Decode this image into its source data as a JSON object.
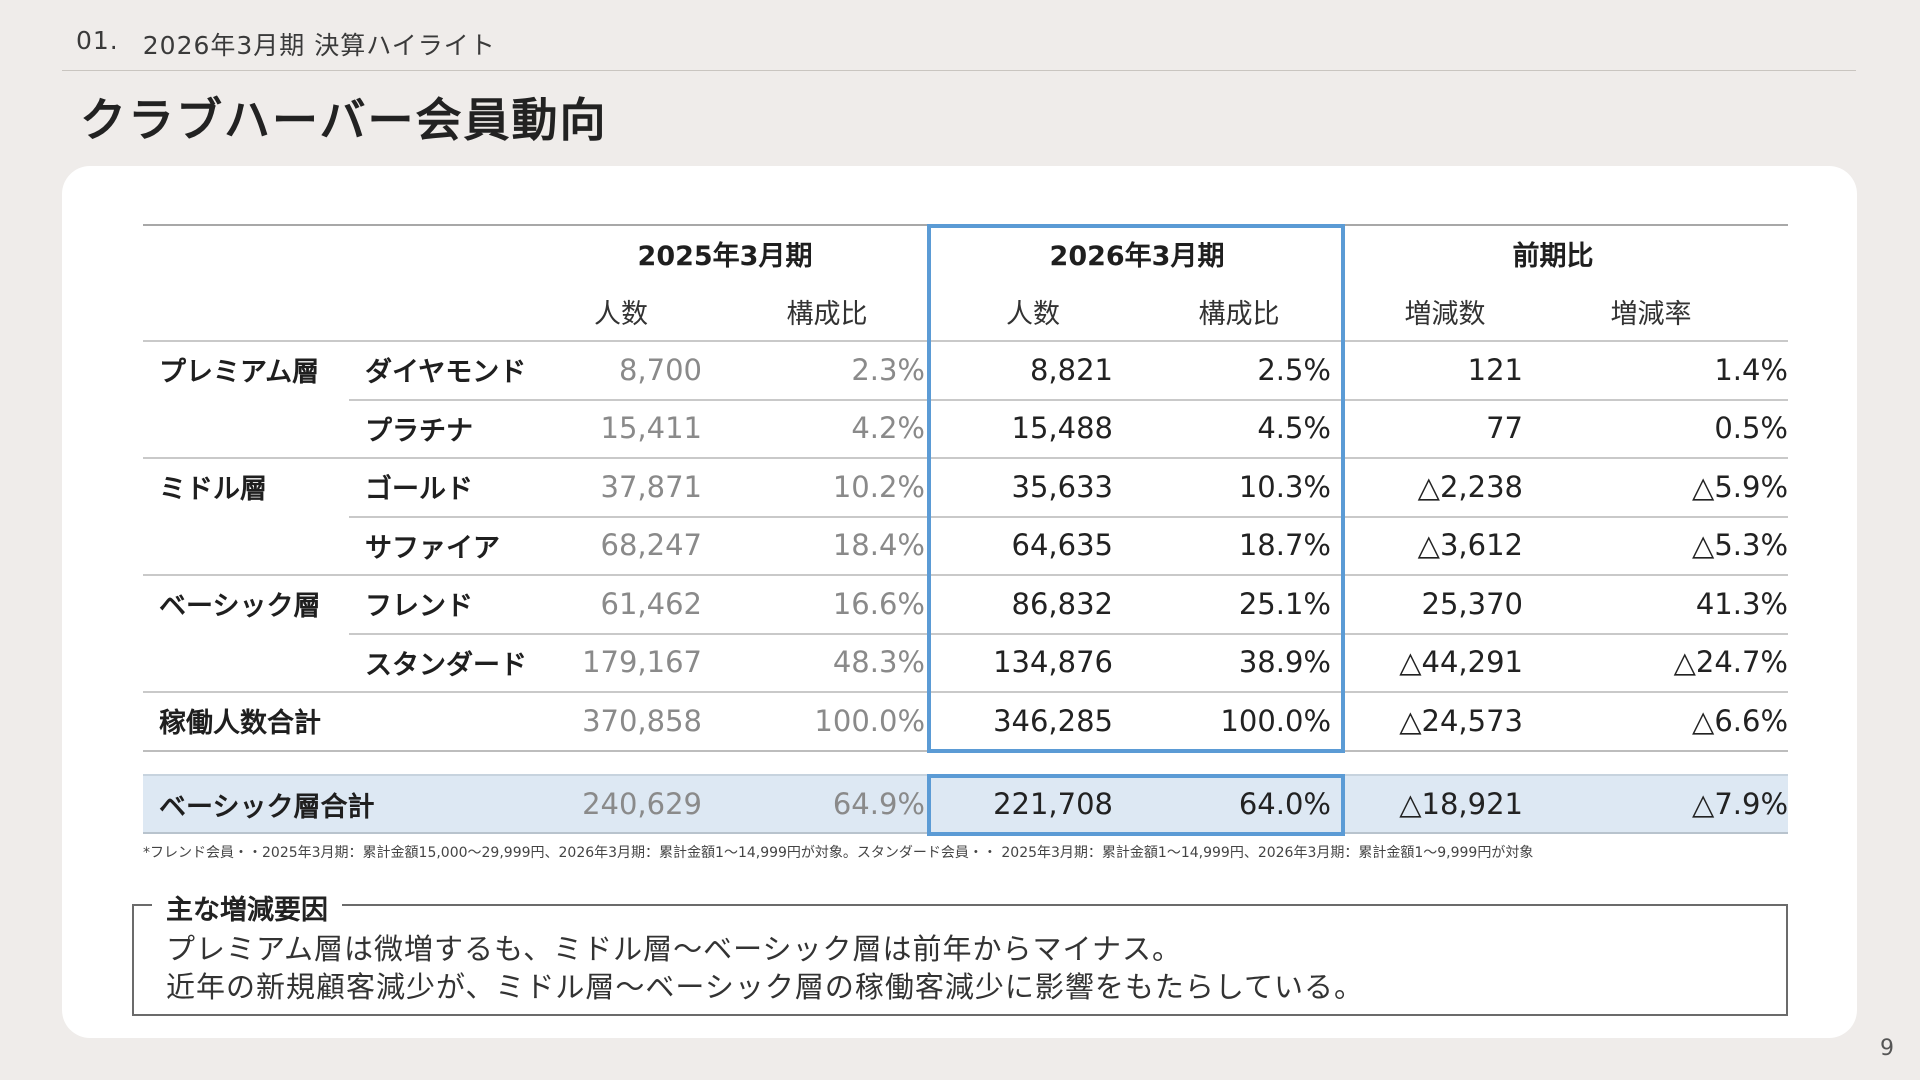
{
  "header": {
    "section_number": "01.",
    "section_title": "2026年3月期 決算ハイライト",
    "page_title": "クラブハーバー会員動向"
  },
  "table": {
    "col_groups": [
      "2025年3月期",
      "2026年3月期",
      "前期比"
    ],
    "sub_headers": [
      "人数",
      "構成比",
      "人数",
      "構成比",
      "増減数",
      "増減率"
    ],
    "rows": [
      {
        "tier": "プレミアム層",
        "rank": "ダイヤモンド",
        "v2025": "8,700",
        "r2025": "2.3%",
        "v2026": "8,821",
        "r2026": "2.5%",
        "diff": "121",
        "rate": "1.4%"
      },
      {
        "tier": "",
        "rank": "プラチナ",
        "v2025": "15,411",
        "r2025": "4.2%",
        "v2026": "15,488",
        "r2026": "4.5%",
        "diff": "77",
        "rate": "0.5%"
      },
      {
        "tier": "ミドル層",
        "rank": "ゴールド",
        "v2025": "37,871",
        "r2025": "10.2%",
        "v2026": "35,633",
        "r2026": "10.3%",
        "diff": "△2,238",
        "rate": "△5.9%"
      },
      {
        "tier": "",
        "rank": "サファイア",
        "v2025": "68,247",
        "r2025": "18.4%",
        "v2026": "64,635",
        "r2026": "18.7%",
        "diff": "△3,612",
        "rate": "△5.3%"
      },
      {
        "tier": "ベーシック層",
        "rank": "フレンド",
        "v2025": "61,462",
        "r2025": "16.6%",
        "v2026": "86,832",
        "r2026": "25.1%",
        "diff": "25,370",
        "rate": "41.3%"
      },
      {
        "tier": "",
        "rank": "スタンダード",
        "v2025": "179,167",
        "r2025": "48.3%",
        "v2026": "134,876",
        "r2026": "38.9%",
        "diff": "△44,291",
        "rate": "△24.7%"
      },
      {
        "tier": "稼働人数合計",
        "rank": "",
        "v2025": "370,858",
        "r2025": "100.0%",
        "v2026": "346,285",
        "r2026": "100.0%",
        "diff": "△24,573",
        "rate": "△6.6%"
      }
    ],
    "summary": {
      "label": "ベーシック層合計",
      "v2025": "240,629",
      "r2025": "64.9%",
      "v2026": "221,708",
      "r2026": "64.0%",
      "diff": "△18,921",
      "rate": "△7.9%"
    }
  },
  "footnote": "*フレンド会員・・2025年3月期：累計金額15,000〜29,999円、2026年3月期：累計金額1〜14,999円が対象。スタンダード会員・・ 2025年3月期：累計金額1〜14,999円、2026年3月期：累計金額1〜9,999円が対象",
  "factors": {
    "title": "主な増減要因",
    "lines": [
      "プレミアム層は微増するも、ミドル層〜ベーシック層は前年からマイナス。",
      "近年の新規顧客減少が、ミドル層〜ベーシック層の稼働客減少に影響をもたらしている。"
    ]
  },
  "page_number": "9",
  "colors": {
    "accent_blue": "#5b9bd5",
    "highlight_row": "#dde8f3",
    "background": "#efecea"
  }
}
